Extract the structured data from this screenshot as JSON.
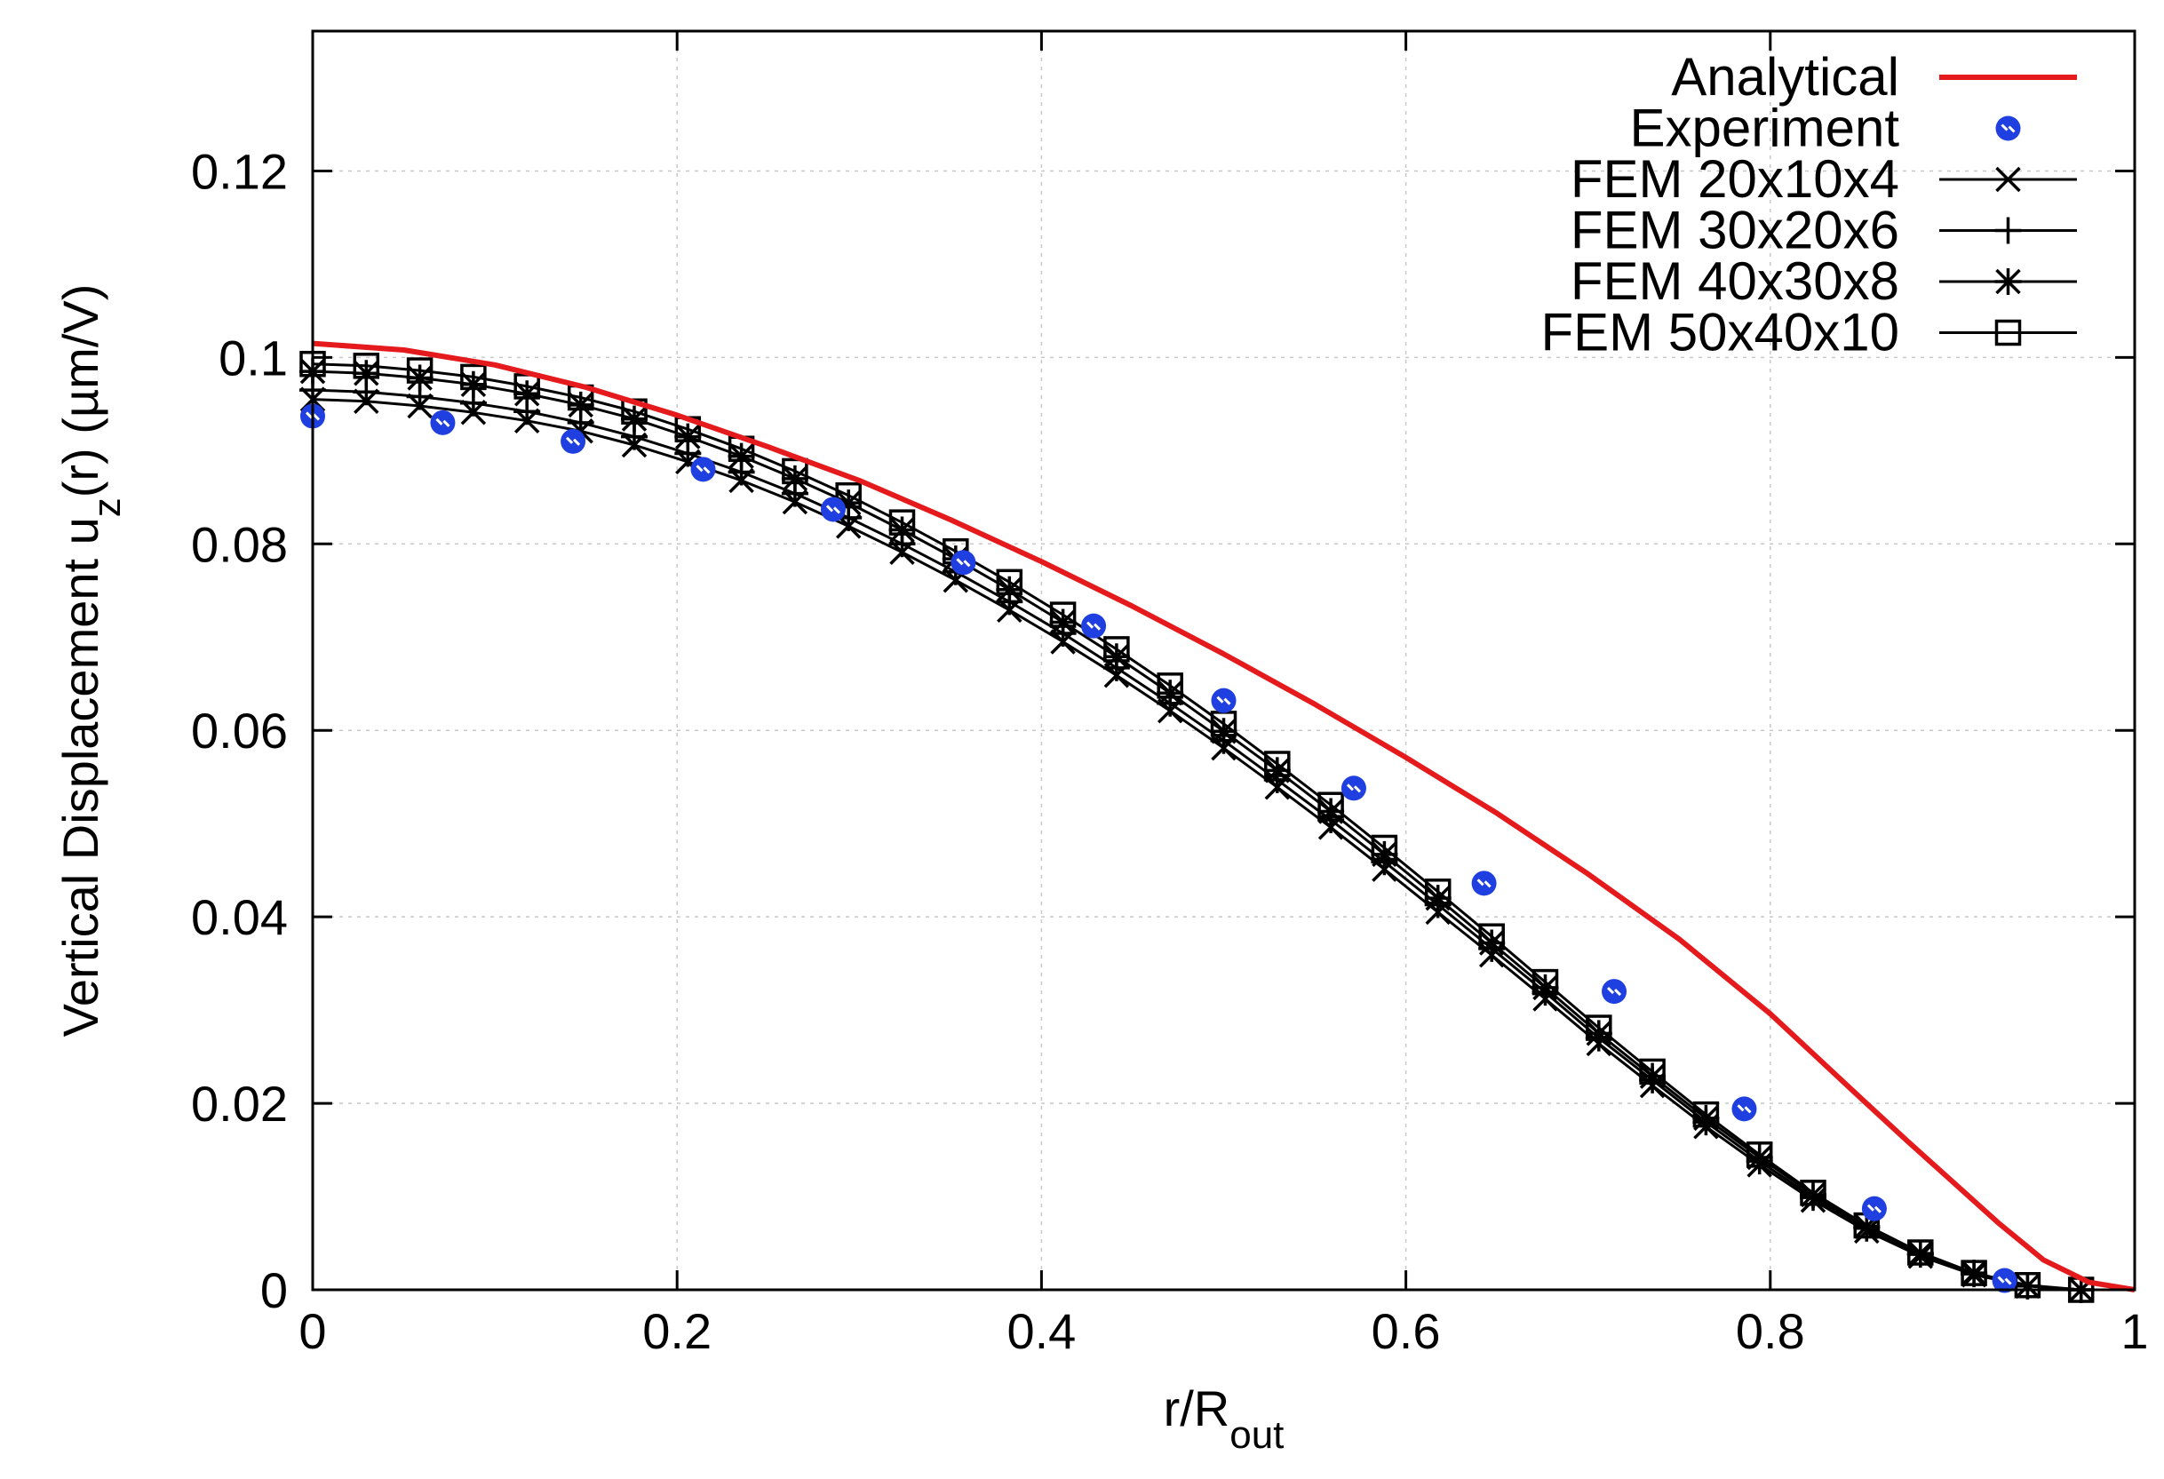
{
  "chart_data": {
    "type": "line",
    "title": "",
    "xlabel": {
      "main": "r/R",
      "sub": "out"
    },
    "ylabel": {
      "prefix": "Vertical Displacement u",
      "sub": "z",
      "suffix": "(r) (µm/V)"
    },
    "xlim": [
      0,
      1
    ],
    "ylim": [
      0,
      0.135
    ],
    "xticks": [
      0,
      0.2,
      0.4,
      0.6,
      0.8,
      1
    ],
    "xtick_labels": [
      "0",
      "0.2",
      "0.4",
      "0.6",
      "0.8",
      "1"
    ],
    "yticks": [
      0,
      0.02,
      0.04,
      0.06,
      0.08,
      0.1,
      0.12
    ],
    "ytick_labels": [
      "0",
      "0.02",
      "0.04",
      "0.06",
      "0.08",
      "0.1",
      "0.12"
    ],
    "grid": true,
    "legend_position": "top-right",
    "x_fem": [
      0,
      0.0294,
      0.0588,
      0.0882,
      0.1176,
      0.1471,
      0.1765,
      0.2059,
      0.2353,
      0.2647,
      0.2941,
      0.3235,
      0.3529,
      0.3824,
      0.4118,
      0.4412,
      0.4706,
      0.5,
      0.5294,
      0.5588,
      0.5882,
      0.6176,
      0.6471,
      0.6765,
      0.7059,
      0.7353,
      0.7647,
      0.7941,
      0.8235,
      0.8529,
      0.8824,
      0.9118,
      0.9412,
      0.9706
    ],
    "series": [
      {
        "name": "Analytical",
        "color": "#e41a1c",
        "marker": "none",
        "x": [
          0,
          0.05,
          0.1,
          0.15,
          0.2,
          0.25,
          0.3,
          0.35,
          0.4,
          0.45,
          0.5,
          0.55,
          0.6,
          0.65,
          0.7,
          0.75,
          0.8,
          0.85,
          0.875,
          0.9,
          0.925,
          0.95,
          0.975,
          1.0
        ],
        "values": [
          0.1015,
          0.1008,
          0.0992,
          0.0968,
          0.0938,
          0.0904,
          0.0868,
          0.0826,
          0.0781,
          0.0733,
          0.0682,
          0.0628,
          0.0571,
          0.0511,
          0.0446,
          0.0376,
          0.0296,
          0.0205,
          0.016,
          0.0116,
          0.0072,
          0.0032,
          0.0008,
          0.0
        ]
      },
      {
        "name": "Experiment",
        "color": "#1f3fe0",
        "marker": "dot",
        "x": [
          0,
          0.0714,
          0.1429,
          0.2143,
          0.2857,
          0.3571,
          0.4286,
          0.5,
          0.5714,
          0.6429,
          0.7143,
          0.7857,
          0.8571,
          0.9286
        ],
        "values": [
          0.0937,
          0.093,
          0.091,
          0.088,
          0.0837,
          0.078,
          0.0712,
          0.0632,
          0.0538,
          0.0436,
          0.032,
          0.0194,
          0.0087,
          0.001
        ]
      },
      {
        "name": "FEM 20x10x4",
        "color": "#000000",
        "marker": "x",
        "values": [
          0.0955,
          0.0953,
          0.0948,
          0.0941,
          0.0932,
          0.0921,
          0.0906,
          0.0888,
          0.0868,
          0.0845,
          0.0819,
          0.0791,
          0.0761,
          0.0729,
          0.0695,
          0.0659,
          0.0621,
          0.0581,
          0.0539,
          0.0496,
          0.0451,
          0.0405,
          0.0359,
          0.0312,
          0.0264,
          0.0219,
          0.0175,
          0.0134,
          0.0096,
          0.0063,
          0.0036,
          0.0016,
          0.0004,
          0.0
        ]
      },
      {
        "name": "FEM 30x20x6",
        "color": "#000000",
        "marker": "plus",
        "values": [
          0.0965,
          0.0963,
          0.0958,
          0.0951,
          0.0942,
          0.093,
          0.0915,
          0.0897,
          0.0877,
          0.0854,
          0.0828,
          0.08,
          0.077,
          0.0738,
          0.0704,
          0.0667,
          0.0629,
          0.0589,
          0.0547,
          0.0504,
          0.0459,
          0.0413,
          0.0366,
          0.0319,
          0.027,
          0.0225,
          0.018,
          0.0138,
          0.0099,
          0.0066,
          0.0038,
          0.0017,
          0.0004,
          0.0
        ]
      },
      {
        "name": "FEM 40x30x8",
        "color": "#000000",
        "marker": "star",
        "values": [
          0.0985,
          0.0983,
          0.0978,
          0.0971,
          0.0961,
          0.0949,
          0.0934,
          0.0915,
          0.0894,
          0.087,
          0.0844,
          0.0815,
          0.0784,
          0.0751,
          0.0716,
          0.0679,
          0.064,
          0.0599,
          0.0557,
          0.0513,
          0.0467,
          0.042,
          0.0372,
          0.0324,
          0.0275,
          0.0229,
          0.0184,
          0.0142,
          0.0102,
          0.0068,
          0.0039,
          0.0018,
          0.0004,
          0.0
        ]
      },
      {
        "name": "FEM 50x40x10",
        "color": "#000000",
        "marker": "square",
        "values": [
          0.0993,
          0.0991,
          0.0986,
          0.0979,
          0.0969,
          0.0957,
          0.0942,
          0.0923,
          0.0902,
          0.0878,
          0.0852,
          0.0823,
          0.0792,
          0.0759,
          0.0724,
          0.0687,
          0.0648,
          0.0607,
          0.0564,
          0.052,
          0.0474,
          0.0427,
          0.0379,
          0.033,
          0.0281,
          0.0234,
          0.0188,
          0.0145,
          0.0104,
          0.0069,
          0.004,
          0.0018,
          0.0005,
          0.0
        ]
      }
    ]
  }
}
